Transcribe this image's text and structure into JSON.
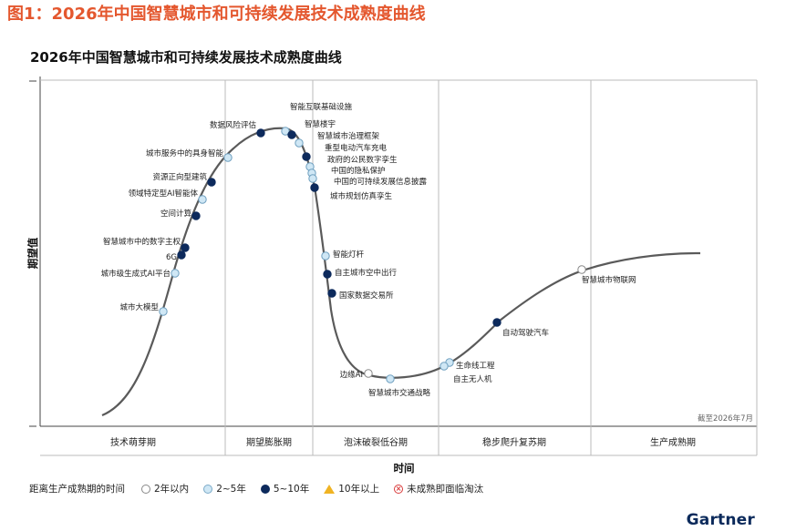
{
  "figure_title": "图1：2026年中国智慧城市和可持续发展技术成熟度曲线",
  "brand": "Gartner",
  "colors": {
    "accent": "#e4572e",
    "curve": "#5a5a5a",
    "lt2": "#ffffff",
    "y2to5": "#cfe7f5",
    "y5to10": "#0d2a5c",
    "y10plus": "#f0b323",
    "obsolete": "#d93b3b",
    "brand": "#0b2a5b"
  },
  "legend": {
    "label": "距离生产成熟期的时间",
    "items": [
      {
        "key": "lt2",
        "label": "2年以内"
      },
      {
        "key": "y2to5",
        "label": "2~5年"
      },
      {
        "key": "y5to10",
        "label": "5~10年"
      },
      {
        "key": "y10plus",
        "label": "10年以上"
      },
      {
        "key": "obsolete",
        "label": "未成熟即面临淘汰"
      }
    ]
  },
  "chart_data": {
    "type": "scatter",
    "title": "2026年中国智慧城市和可持续发展技术成熟度曲线",
    "xlabel": "时间",
    "ylabel": "期望值",
    "as_of": "截至2026年7月",
    "phases": [
      "技术萌芽期",
      "期望膨胀期",
      "泡沫破裂低谷期",
      "稳步爬升复苏期",
      "生产成熟期"
    ],
    "points": [
      {
        "name": "城市大模型",
        "phase": "技术萌芽期",
        "eta": "y2to5"
      },
      {
        "name": "城市级生成式AI平台",
        "phase": "技术萌芽期",
        "eta": "y2to5"
      },
      {
        "name": "6G",
        "phase": "技术萌芽期",
        "eta": "y5to10"
      },
      {
        "name": "智慧城市中的数字主权",
        "phase": "技术萌芽期",
        "eta": "y5to10"
      },
      {
        "name": "空间计算",
        "phase": "技术萌芽期",
        "eta": "y5to10"
      },
      {
        "name": "领域特定型AI智能体",
        "phase": "技术萌芽期",
        "eta": "y2to5"
      },
      {
        "name": "资源正向型建筑",
        "phase": "技术萌芽期",
        "eta": "y5to10"
      },
      {
        "name": "城市服务中的具身智能",
        "phase": "期望膨胀期",
        "eta": "y2to5"
      },
      {
        "name": "数据风险评估",
        "phase": "期望膨胀期",
        "eta": "y5to10"
      },
      {
        "name": "智能互联基础设施",
        "phase": "期望膨胀期",
        "eta": "y2to5"
      },
      {
        "name": "智慧楼宇",
        "phase": "期望膨胀期",
        "eta": "y5to10"
      },
      {
        "name": "智慧城市治理框架",
        "phase": "泡沫破裂低谷期",
        "eta": "y2to5"
      },
      {
        "name": "重型电动汽车充电",
        "phase": "泡沫破裂低谷期",
        "eta": "y5to10"
      },
      {
        "name": "政府的公民数字孪生",
        "phase": "泡沫破裂低谷期",
        "eta": "y2to5"
      },
      {
        "name": "中国的隐私保护",
        "phase": "泡沫破裂低谷期",
        "eta": "y2to5"
      },
      {
        "name": "中国的可持续发展信息披露",
        "phase": "泡沫破裂低谷期",
        "eta": "y2to5"
      },
      {
        "name": "城市规划仿真孪生",
        "phase": "泡沫破裂低谷期",
        "eta": "y5to10"
      },
      {
        "name": "智能灯杆",
        "phase": "泡沫破裂低谷期",
        "eta": "y2to5"
      },
      {
        "name": "自主城市空中出行",
        "phase": "泡沫破裂低谷期",
        "eta": "y5to10"
      },
      {
        "name": "国家数据交易所",
        "phase": "泡沫破裂低谷期",
        "eta": "y5to10"
      },
      {
        "name": "边缘AI",
        "phase": "泡沫破裂低谷期",
        "eta": "lt2"
      },
      {
        "name": "智慧城市交通战略",
        "phase": "泡沫破裂低谷期",
        "eta": "y2to5"
      },
      {
        "name": "生命线工程",
        "phase": "稳步爬升复苏期",
        "eta": "y2to5"
      },
      {
        "name": "自主无人机",
        "phase": "稳步爬升复苏期",
        "eta": "y2to5"
      },
      {
        "name": "自动驾驶汽车",
        "phase": "稳步爬升复苏期",
        "eta": "y5to10"
      },
      {
        "name": "智慧城市物联网",
        "phase": "稳步爬升复苏期",
        "eta": "lt2"
      }
    ]
  }
}
